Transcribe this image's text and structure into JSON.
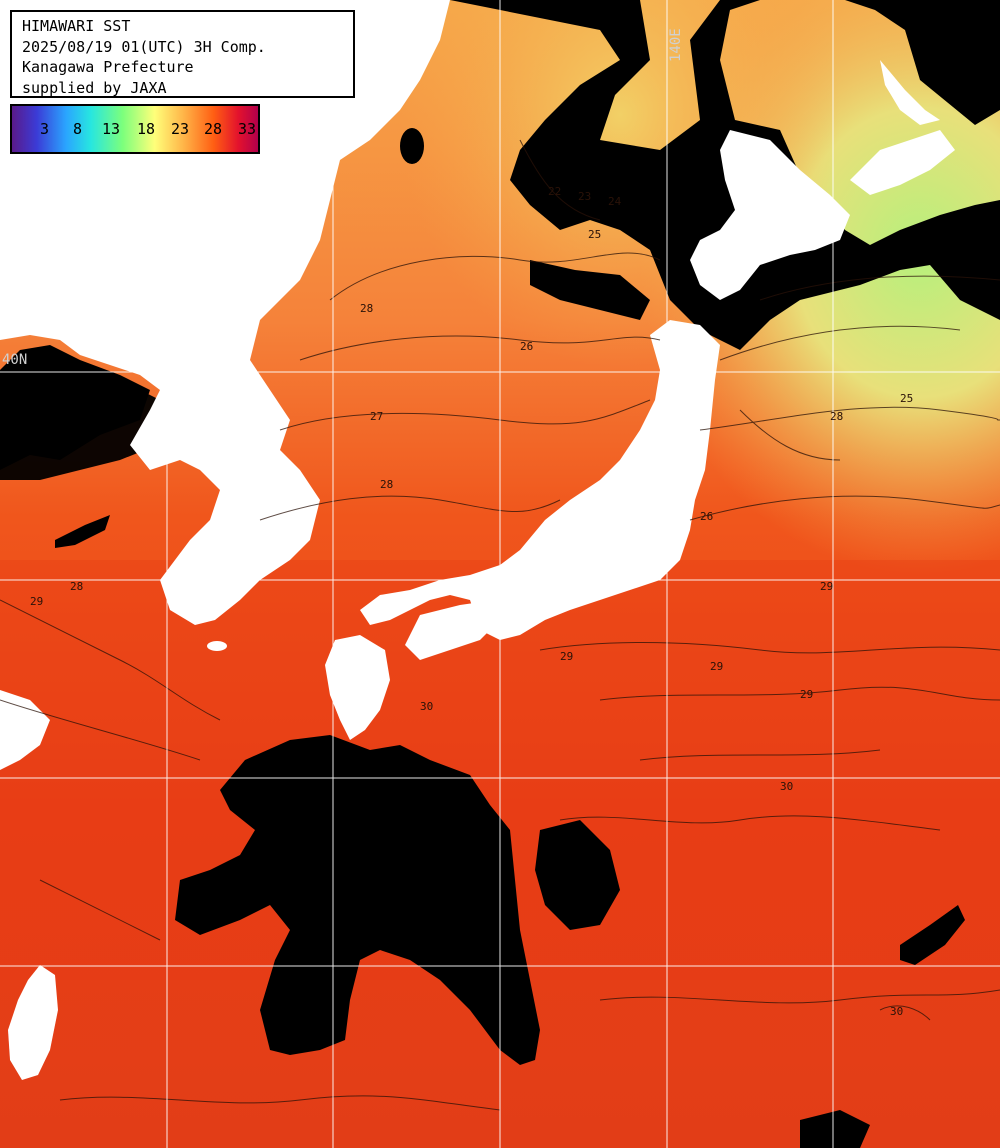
{
  "header": {
    "line1": "HIMAWARI SST",
    "line2": "2025/08/19 01(UTC) 3H Comp.",
    "line3": "Kanagawa Prefecture",
    "line4": "supplied by JAXA"
  },
  "legend": {
    "ticks": [
      "3",
      "8",
      "13",
      "18",
      "23",
      "28",
      "33"
    ],
    "colormap": [
      "#5a1a8a",
      "#3b3bd6",
      "#2aa5ff",
      "#27e6e0",
      "#7cff7c",
      "#ffff7a",
      "#ffb347",
      "#ff5e13",
      "#e3122d",
      "#b3004c"
    ]
  },
  "grid": {
    "lon_label": "140E",
    "lat_label": "40N"
  },
  "contour_labels": [
    "22",
    "23",
    "24",
    "25",
    "25",
    "26",
    "26",
    "27",
    "28",
    "28",
    "28",
    "28",
    "29",
    "29",
    "29",
    "29",
    "29",
    "30",
    "30",
    "30"
  ],
  "colors": {
    "land": "#ffffff",
    "cloud": "#000000",
    "gridline": "#ffffff",
    "warm_sea": "#f0501a",
    "hot_sea": "#e43a14"
  }
}
